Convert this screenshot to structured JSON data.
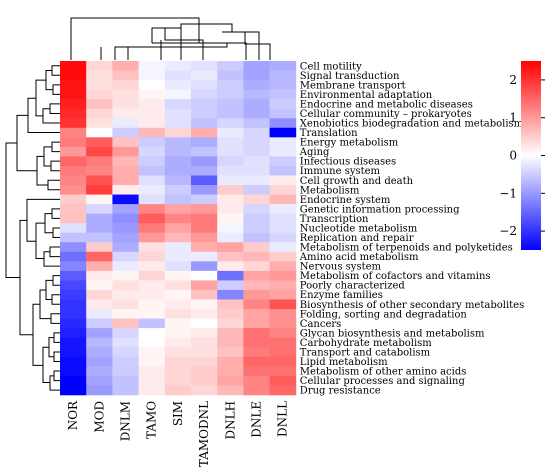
{
  "chart_data": {
    "type": "heatmap",
    "title": "",
    "columns": [
      "NOR",
      "MOD",
      "DNLM",
      "TAMO",
      "SIM",
      "TAMODNL",
      "DNLH",
      "DNLE",
      "DNLL"
    ],
    "rows": [
      "Cell  motility",
      "Signal  transduction",
      "Membrane  transport",
      "Environmental  adaptation",
      "Endocrine  and  metabolic  diseases",
      "Cellular community – prokaryotes",
      "Xenobiotics  biodegradation  and  metabolism",
      "Translation",
      "Energy  metabolism",
      "Aging",
      "Infectious  diseases",
      "Immune  system",
      "Cell growth and death",
      "Metabolism",
      "Endocrine  system",
      "Genetic  information  processing",
      "Transcription",
      "Nucleotide  metabolism",
      "Replication  and  repair",
      "Metabolism  of  terpenoids  and  polyketides",
      "Amino  acid  metabolism",
      "Nervous  system",
      "Metabolism  of  cofactors  and  vitamins",
      "Poorly  characterized",
      "Enzyme  families",
      "Biosynthesis  of  other  secondary  metabolites",
      "Folding,  sorting  and  degradation",
      "Cancers",
      "Glycan  biosynthesis  and  metabolism",
      "Carbohydrate  metabolism",
      "Transport  and  catabolism",
      "Lipid  metabolism",
      "Metabolism  of  other  amino  acids",
      "Cellular  processes  and  signaling",
      "Drug  resistance"
    ],
    "values": [
      [
        2.4,
        0.4,
        0.8,
        -0.1,
        -0.2,
        -0.3,
        -0.5,
        -0.9,
        -0.8
      ],
      [
        2.4,
        0.3,
        0.6,
        -0.1,
        -0.3,
        -0.2,
        -0.6,
        -0.9,
        -0.7
      ],
      [
        2.3,
        0.3,
        0.4,
        0.0,
        -0.2,
        -0.3,
        -0.5,
        -0.8,
        -0.7
      ],
      [
        2.3,
        0.4,
        0.3,
        0.1,
        -0.1,
        -0.4,
        -0.5,
        -0.7,
        -0.6
      ],
      [
        2.2,
        0.6,
        0.3,
        0.2,
        -0.4,
        -0.5,
        -0.6,
        -0.8,
        -0.5
      ],
      [
        2.1,
        0.4,
        0.2,
        0.2,
        -0.3,
        -0.5,
        -0.6,
        -0.8,
        -0.6
      ],
      [
        2.0,
        0.3,
        -0.2,
        0.2,
        -0.3,
        -0.6,
        -0.4,
        -0.6,
        -1.1
      ],
      [
        1.2,
        0.0,
        -0.5,
        0.7,
        0.4,
        0.8,
        -0.2,
        -0.4,
        -2.5
      ],
      [
        1.3,
        1.6,
        0.6,
        -0.5,
        -0.7,
        -0.8,
        -0.3,
        -0.4,
        -0.2
      ],
      [
        1.0,
        1.8,
        1.0,
        -0.4,
        -0.7,
        -0.6,
        -0.3,
        -0.4,
        -0.2
      ],
      [
        1.5,
        1.3,
        0.7,
        -0.5,
        -0.8,
        -1.0,
        -0.4,
        -0.3,
        -0.5
      ],
      [
        1.3,
        1.2,
        0.8,
        -0.6,
        -0.8,
        -0.8,
        -0.3,
        -0.3,
        -0.6
      ],
      [
        1.2,
        1.7,
        0.8,
        -0.3,
        -0.7,
        -1.6,
        -0.2,
        -0.2,
        0.2
      ],
      [
        1.1,
        1.9,
        0.2,
        -0.2,
        -0.5,
        -1.0,
        0.5,
        -0.5,
        0.4
      ],
      [
        0.5,
        0.1,
        -2.4,
        -0.3,
        -0.6,
        -0.5,
        0.2,
        0.4,
        0.7
      ],
      [
        0.6,
        -0.4,
        -0.9,
        1.2,
        0.9,
        1.0,
        0.2,
        -0.4,
        -0.2
      ],
      [
        0.6,
        -0.8,
        -1.1,
        1.6,
        1.2,
        1.3,
        0.1,
        -0.5,
        -0.3
      ],
      [
        -0.3,
        -0.8,
        -1.0,
        1.3,
        0.9,
        1.3,
        -0.1,
        -0.5,
        -0.3
      ],
      [
        -0.6,
        -0.6,
        -0.9,
        1.0,
        0.7,
        1.0,
        -0.2,
        -0.6,
        -0.4
      ],
      [
        -1.1,
        0.5,
        -0.8,
        0.3,
        -0.2,
        0.8,
        0.9,
        0.5,
        -0.2
      ],
      [
        -1.4,
        1.5,
        -0.4,
        0.4,
        -0.2,
        -0.2,
        0.6,
        0.7,
        0.5
      ],
      [
        -1.2,
        0.8,
        -0.2,
        0.2,
        -0.3,
        -1.0,
        0.2,
        0.4,
        0.8
      ],
      [
        -1.6,
        0.2,
        0.1,
        0.4,
        0.1,
        0.0,
        -1.4,
        0.9,
        1.0
      ],
      [
        -1.8,
        0.1,
        0.3,
        0.2,
        0.3,
        0.9,
        -0.5,
        0.7,
        0.8
      ],
      [
        -1.9,
        0.4,
        0.2,
        0.2,
        0.1,
        0.6,
        -1.2,
        1.0,
        0.9
      ],
      [
        -2.0,
        0.2,
        0.3,
        0.1,
        0.2,
        0.1,
        0.6,
        1.2,
        1.7
      ],
      [
        -2.0,
        -0.2,
        0.1,
        0.1,
        0.3,
        0.2,
        0.5,
        0.9,
        1.1
      ],
      [
        -2.1,
        -0.5,
        0.6,
        -0.6,
        0.1,
        0.0,
        0.4,
        0.9,
        1.1
      ],
      [
        -2.2,
        -0.9,
        -0.4,
        0.0,
        0.1,
        0.2,
        0.7,
        1.4,
        1.2
      ],
      [
        -2.3,
        -0.7,
        -0.3,
        0.0,
        0.2,
        0.3,
        0.7,
        1.4,
        1.4
      ],
      [
        -2.3,
        -0.8,
        -0.4,
        0.1,
        0.3,
        0.3,
        0.6,
        1.3,
        1.4
      ],
      [
        -2.4,
        -0.9,
        -0.5,
        0.1,
        0.4,
        0.4,
        0.8,
        1.5,
        1.5
      ],
      [
        -2.4,
        -0.8,
        -0.5,
        0.2,
        0.4,
        0.5,
        0.8,
        1.4,
        1.4
      ],
      [
        -2.5,
        -0.9,
        -0.6,
        0.2,
        0.4,
        0.5,
        0.9,
        1.2,
        1.6
      ],
      [
        -2.5,
        -1.0,
        -0.6,
        0.2,
        0.5,
        0.4,
        0.7,
        1.2,
        1.5
      ]
    ],
    "color_scale": {
      "min": -2.5,
      "max": 2.5,
      "low_color": "#0000ff",
      "mid_color": "#ffffff",
      "high_color": "#ff0000",
      "ticks": [
        2,
        1,
        0,
        -1,
        -2
      ],
      "tick_labels": [
        "2",
        "1",
        "0",
        "−1",
        "−2"
      ]
    },
    "row_clusters": "dendrogram-left",
    "column_clusters": "dendrogram-top",
    "legend": "right"
  }
}
